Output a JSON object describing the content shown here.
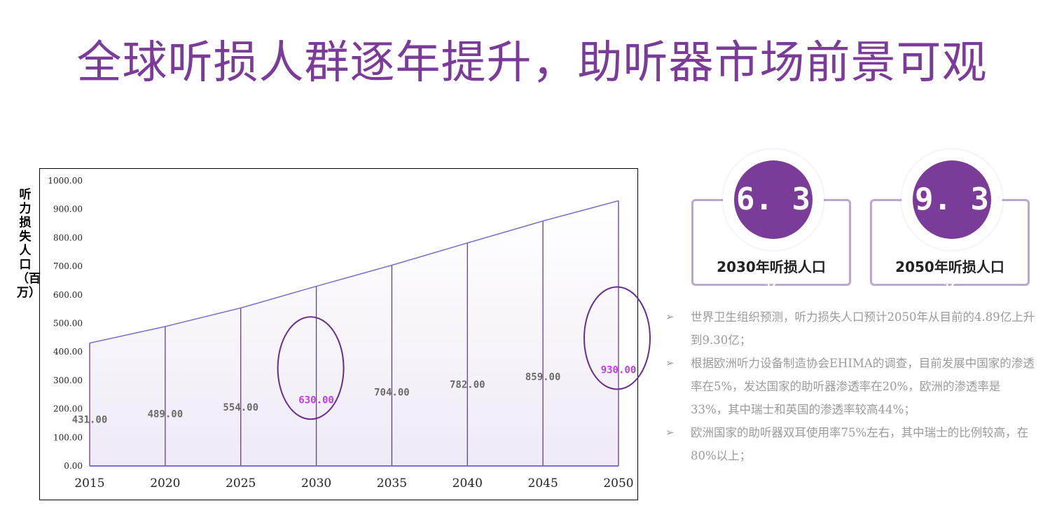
{
  "title": "全球听损人群逐年提升，助听器市场前景可观",
  "chart_data": {
    "type": "area",
    "ylabel": "听力损失人口（百万）",
    "ylim": [
      0,
      1000
    ],
    "yticks": [
      "1000.00",
      "900.00",
      "800.00",
      "700.00",
      "600.00",
      "500.00",
      "400.00",
      "300.00",
      "200.00",
      "100.00",
      "0.00"
    ],
    "categories": [
      "2015",
      "2020",
      "2025",
      "2030",
      "2035",
      "2040",
      "2045",
      "2050"
    ],
    "values": [
      431,
      489,
      554,
      630,
      704,
      782,
      859,
      930
    ],
    "value_labels": [
      "431.00",
      "489.00",
      "554.00",
      "630.00",
      "704.00",
      "782.00",
      "859.00",
      "930.00"
    ],
    "highlighted": [
      "2030",
      "2050"
    ],
    "colors": {
      "line": "#7b6fc9",
      "drop": "#6a3b8e",
      "highlight": "#c03ee0",
      "label": "#6b6b6b",
      "circle": "#6a2d8a"
    }
  },
  "stats": [
    {
      "num": "6. 3",
      "unit": "亿",
      "label": "2030年听损人口"
    },
    {
      "num": "9. 3",
      "unit": "亿",
      "label": "2050年听损人口"
    }
  ],
  "bullets": [
    "世界卫生组织预测，听力损失人口预计2050年从目前的4.89亿上升到9.30亿；",
    "根据欧洲听力设备制造协会EHIMA的调查，目前发展中国家的渗透率在5%，发达国家的助听器渗透率在20%，欧洲的渗透率是33%，其中瑞士和英国的渗透率较高44%；",
    "欧洲国家的助听器双耳使用率75%左右，其中瑞士的比例较高，在80%以上；"
  ],
  "bullet_icon": "arrow-bullet-icon"
}
